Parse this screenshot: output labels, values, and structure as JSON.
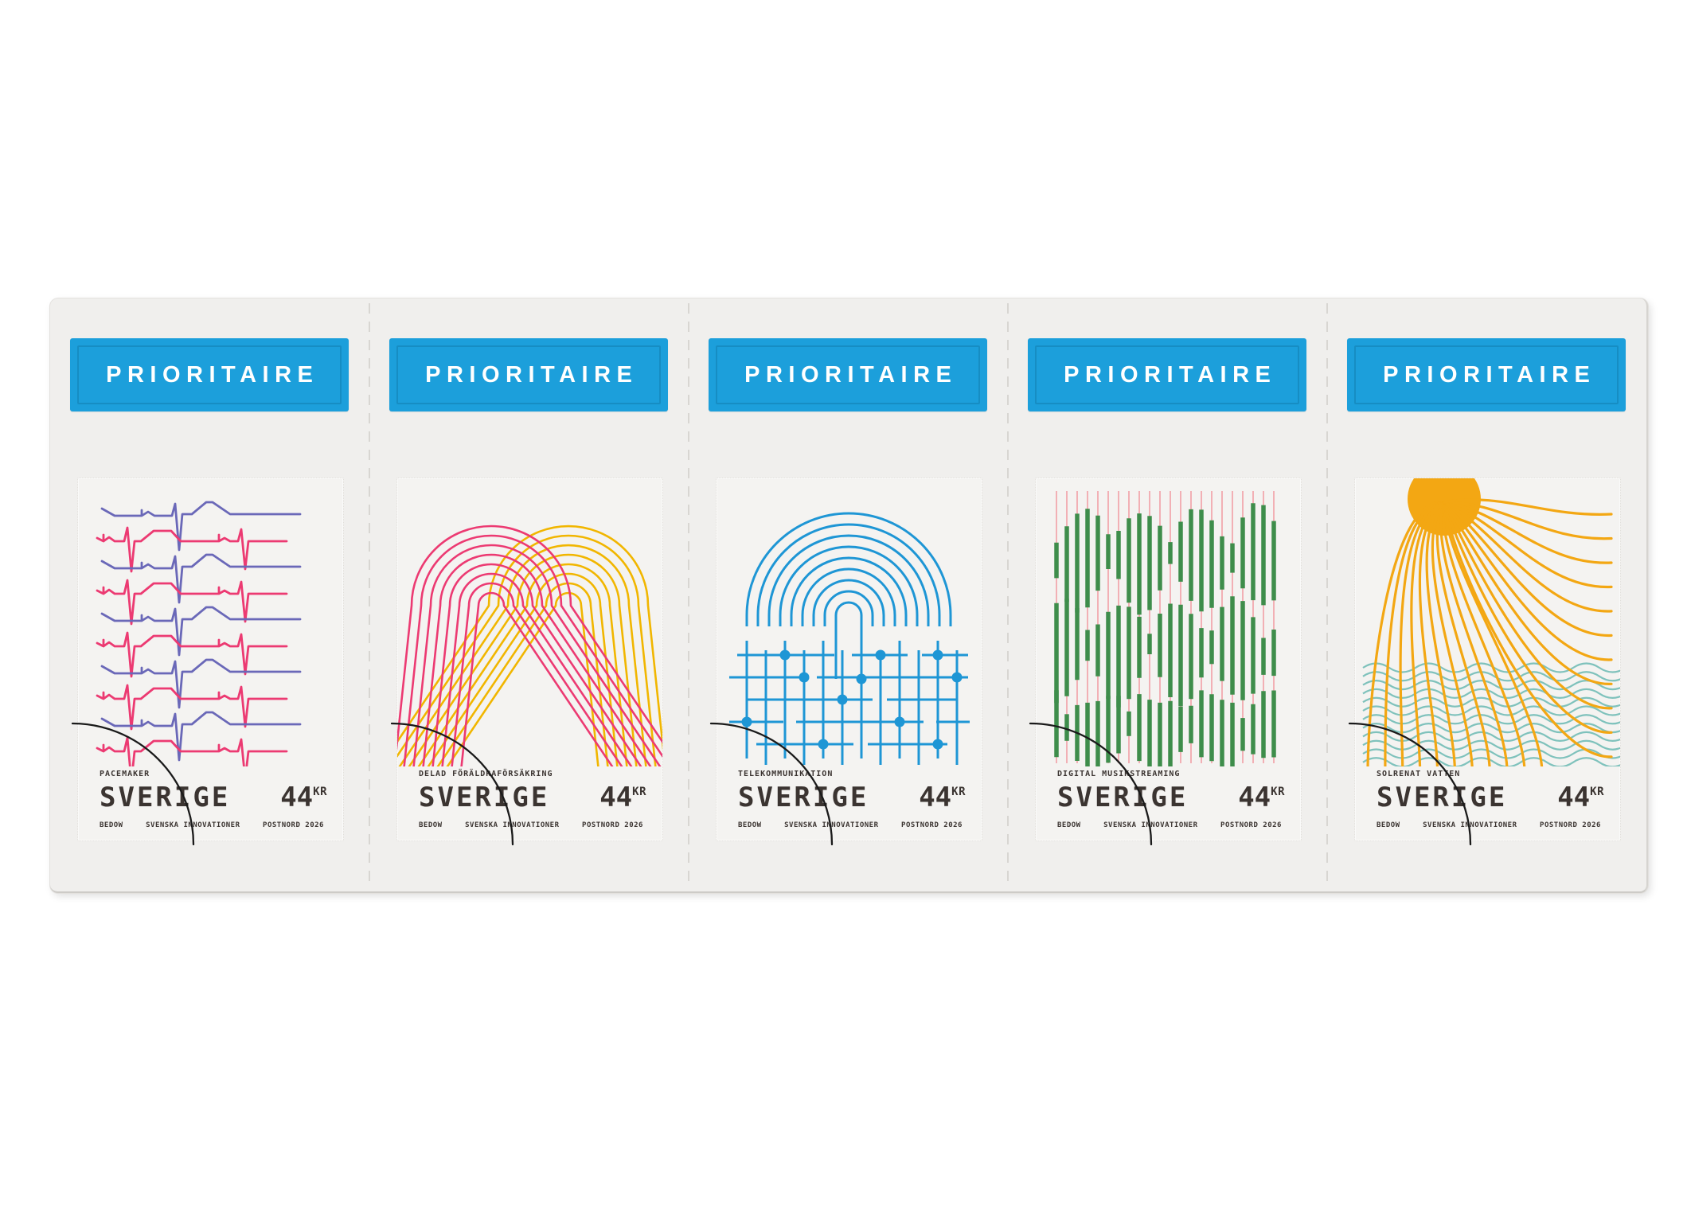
{
  "sheet": {
    "label_text": "PRIORITAIRE",
    "colors": {
      "label_bg": "#1C9FDB",
      "label_text": "#FFFFFF",
      "sheet_bg": "#F0EFED",
      "stamp_bg": "#F4F3F1",
      "ink": "#3B3431",
      "cut_line": "#1A1A1A",
      "divider": "#D8D6D2"
    },
    "stamps": [
      {
        "title": "PACEMAKER",
        "country": "SVERIGE",
        "value": "44",
        "currency": "KR",
        "credits": [
          "BEDOW",
          "SVENSKA INNOVATIONER",
          "POSTNORD 2026"
        ],
        "artwork": "ecg-heartbeat-lines",
        "art_colors": [
          "#6A68B8",
          "#EC3A72"
        ]
      },
      {
        "title": "DELAD FÖRÄLDRAFÖRSÄKRING",
        "country": "SVERIGE",
        "value": "44",
        "currency": "KR",
        "credits": [
          "BEDOW",
          "SVENSKA INNOVATIONER",
          "POSTNORD 2026"
        ],
        "artwork": "interlocking-arches",
        "art_colors": [
          "#EC3A72",
          "#F1B600"
        ]
      },
      {
        "title": "TELEKOMMUNIKATION",
        "country": "SVERIGE",
        "value": "44",
        "currency": "KR",
        "credits": [
          "BEDOW",
          "SVENSKA INNOVATIONER",
          "POSTNORD 2026"
        ],
        "artwork": "radio-arcs-circuit",
        "art_colors": [
          "#1E96D5"
        ]
      },
      {
        "title": "DIGITAL MUSIKSTREAMING",
        "country": "SVERIGE",
        "value": "44",
        "currency": "KR",
        "credits": [
          "BEDOW",
          "SVENSKA INNOVATIONER",
          "POSTNORD 2026"
        ],
        "artwork": "waveform-bars",
        "art_colors": [
          "#F2B0B5",
          "#3E8D4B"
        ]
      },
      {
        "title": "SOLRENAT VATTEN",
        "country": "SVERIGE",
        "value": "44",
        "currency": "KR",
        "credits": [
          "BEDOW",
          "SVENSKA INNOVATIONER",
          "POSTNORD 2026"
        ],
        "artwork": "sun-rays-water-waves",
        "art_colors": [
          "#F3A713",
          "#7FC2BC"
        ]
      }
    ]
  }
}
